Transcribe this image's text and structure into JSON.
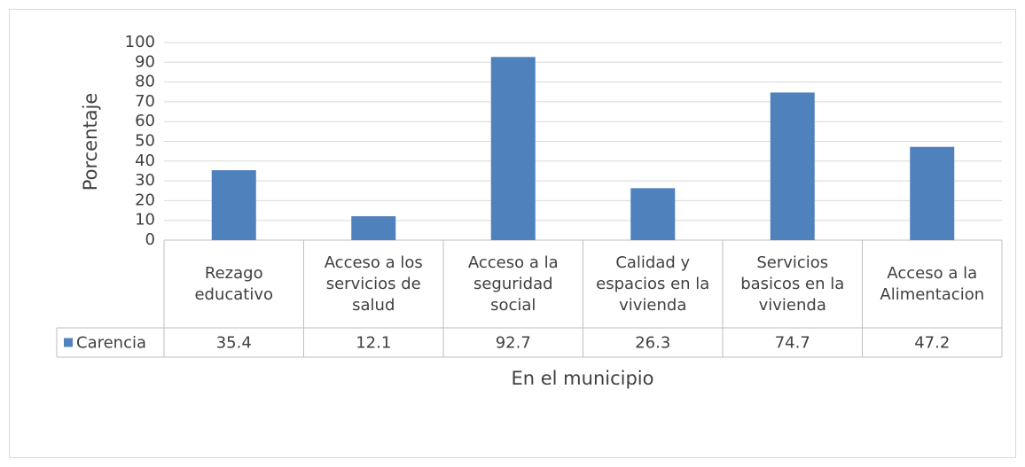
{
  "chart_data": {
    "type": "bar",
    "categories": [
      "Rezago educativo",
      "Acceso a los servicios de salud",
      "Acceso a la seguridad social",
      "Calidad y espacios en la vivienda",
      "Servicios basicos en la vivienda",
      "Acceso a la Alimentacion"
    ],
    "series": [
      {
        "name": "Carencia",
        "color": "#4f81bd",
        "values": [
          35.4,
          12.1,
          92.7,
          26.3,
          74.7,
          47.2
        ]
      }
    ],
    "ylim": [
      0,
      100
    ],
    "yticks": [
      0,
      10,
      20,
      30,
      40,
      50,
      60,
      70,
      80,
      90,
      100
    ],
    "x_label": "En el municipio",
    "y_label": "Porcentaje",
    "grid": true
  }
}
